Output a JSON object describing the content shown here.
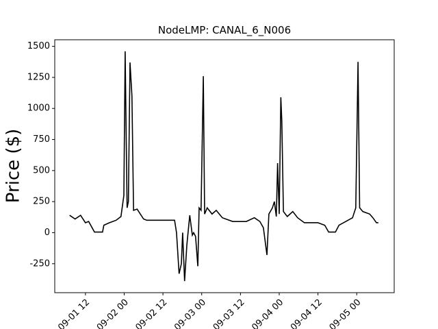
{
  "chart_data": {
    "type": "line",
    "title": "NodeLMP: CANAL_6_N006",
    "y_label": "Price ($)",
    "x": [
      7.1,
      8.8,
      10.5,
      12,
      13,
      14.8,
      17.3,
      17.7,
      19.4,
      21.5,
      23,
      23.9,
      24.3,
      24.9,
      25.3,
      25.8,
      26.4,
      26.9,
      28,
      29,
      30,
      31,
      33,
      36.4,
      39.6,
      40.2,
      41,
      41.7,
      42.1,
      42.7,
      43.4,
      44.3,
      45.1,
      45.5,
      46.1,
      46.8,
      47.2,
      47.8,
      48.5,
      48.9,
      49.7,
      51.2,
      52.5,
      54.4,
      57.6,
      61.8,
      64.3,
      66,
      67.1,
      68.2,
      68.8,
      69.9,
      70.5,
      71.1,
      71.5,
      72,
      72.5,
      72.8,
      73.3,
      74.5,
      76.2,
      77.7,
      79.8,
      84,
      86.1,
      87.3,
      89.4,
      90.5,
      92.6,
      94.7,
      95.7,
      96.4,
      96.9,
      97.9,
      100,
      101,
      102.1,
      102.7
    ],
    "series": [
      {
        "color": "#000000",
        "values": [
          140,
          110,
          140,
          80,
          90,
          5,
          5,
          60,
          80,
          100,
          130,
          300,
          1460,
          200,
          250,
          1370,
          1100,
          180,
          190,
          150,
          110,
          100,
          100,
          100,
          100,
          0,
          -330,
          -250,
          0,
          -390,
          -100,
          140,
          -20,
          0,
          -30,
          -270,
          200,
          180,
          1260,
          150,
          200,
          150,
          180,
          120,
          90,
          90,
          120,
          90,
          40,
          -180,
          150,
          200,
          250,
          130,
          560,
          150,
          1090,
          900,
          170,
          130,
          170,
          120,
          80,
          80,
          60,
          5,
          5,
          60,
          90,
          120,
          200,
          1375,
          200,
          170,
          150,
          120,
          80,
          80
        ]
      }
    ],
    "xlim": [
      2.5,
      107.6
    ],
    "xticks": [
      {
        "value": 12,
        "label": "09-01 12"
      },
      {
        "value": 24,
        "label": "09-02 00"
      },
      {
        "value": 36,
        "label": "09-02 12"
      },
      {
        "value": 48,
        "label": "09-03 00"
      },
      {
        "value": 60,
        "label": "09-03 12"
      },
      {
        "value": 72,
        "label": "09-04 00"
      },
      {
        "value": 84,
        "label": "09-04 12"
      },
      {
        "value": 96,
        "label": "09-05 00"
      }
    ],
    "ylim": [
      -483,
      1553
    ],
    "yticks": [
      -250,
      0,
      250,
      500,
      750,
      1000,
      1250,
      1500
    ]
  }
}
